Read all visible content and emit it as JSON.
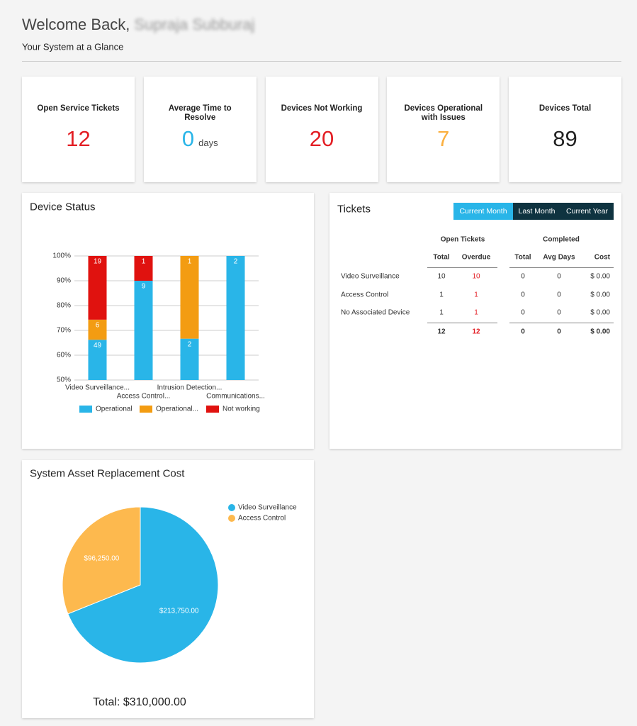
{
  "header": {
    "greeting": "Welcome Back,",
    "user": "Supraja Subburaj",
    "subtitle": "Your System at a Glance"
  },
  "cards": [
    {
      "label": "Open Service Tickets",
      "value": 12,
      "color": "#e31e24"
    },
    {
      "label": "Average Time to Resolve",
      "value": 0,
      "unit": "days",
      "color": "#29b5e8"
    },
    {
      "label": "Devices Not Working",
      "value": 20,
      "color": "#e31e24"
    },
    {
      "label": "Devices Operational with Issues",
      "value": 7,
      "color": "#fbb040"
    },
    {
      "label": "Devices Total",
      "value": 89,
      "color": "#222222"
    }
  ],
  "tickets": {
    "title": "Tickets",
    "periods": [
      "Current Month",
      "Last Month",
      "Current Year"
    ],
    "active_period": 0,
    "groups": [
      "Open Tickets",
      "Completed"
    ],
    "columns": [
      "Total",
      "Overdue",
      "Total",
      "Avg Days",
      "Cost"
    ],
    "rows": [
      {
        "label": "Video Surveillance",
        "cells": [
          "10",
          "10",
          "0",
          "0",
          "$ 0.00"
        ]
      },
      {
        "label": "Access Control",
        "cells": [
          "1",
          "1",
          "0",
          "0",
          "$ 0.00"
        ]
      },
      {
        "label": "No Associated Device",
        "cells": [
          "1",
          "1",
          "0",
          "0",
          "$ 0.00"
        ]
      }
    ],
    "totals": [
      "12",
      "12",
      "0",
      "0",
      "$ 0.00"
    ]
  },
  "chart_data": [
    {
      "type": "bar",
      "stacking": "percent",
      "title": "Device Status",
      "categories": [
        "Video Surveillance...",
        "Access Control...",
        "Intrusion Detection...",
        "Communications..."
      ],
      "series": [
        {
          "name": "Operational",
          "color": "#29b5e8",
          "values": [
            49,
            9,
            2,
            2
          ]
        },
        {
          "name": "Operational...",
          "color": "#f39c12",
          "values": [
            6,
            0,
            1,
            0
          ]
        },
        {
          "name": "Not working",
          "color": "#e0120f",
          "values": [
            19,
            1,
            0,
            0
          ]
        }
      ],
      "ylim": [
        50,
        100
      ],
      "yticks": [
        {
          "value": 50,
          "label": "50%"
        },
        {
          "value": 60,
          "label": "60%"
        },
        {
          "value": 70,
          "label": "70%"
        },
        {
          "value": 80,
          "label": "80%"
        },
        {
          "value": 90,
          "label": "90%"
        },
        {
          "value": 100,
          "label": "100%"
        }
      ],
      "grid": true,
      "legend": "bottom"
    },
    {
      "type": "pie",
      "title": "System Asset Replacement Cost",
      "categories": [
        "Video Surveillance",
        "Access Control"
      ],
      "values": [
        213750,
        96250
      ],
      "value_labels": [
        "$213,750.00",
        "$96,250.00"
      ],
      "colors": [
        "#29b5e8",
        "#fdb94e"
      ],
      "total_label": "Total: $310,000.00",
      "legend": "top-right"
    }
  ]
}
